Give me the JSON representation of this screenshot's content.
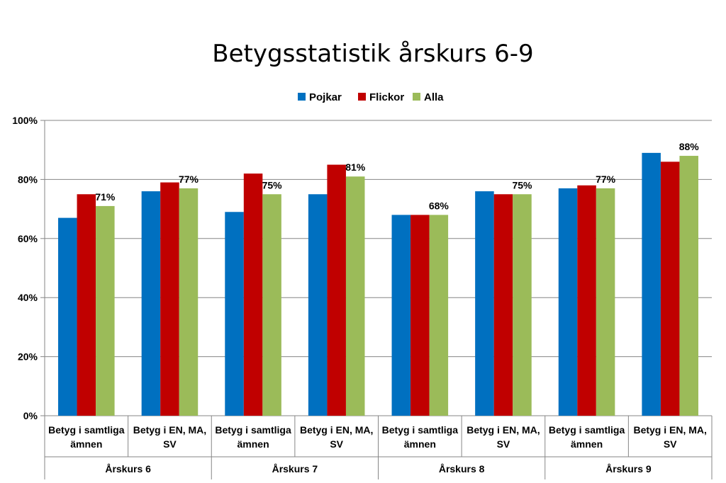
{
  "chart_data": {
    "type": "bar",
    "title": "Betygsstatistik årskurs 6-9",
    "xlabel": "",
    "ylabel": "",
    "ylim": [
      0,
      100
    ],
    "yticks": [
      0,
      20,
      40,
      60,
      80,
      100
    ],
    "ytick_labels": [
      "0%",
      "20%",
      "40%",
      "60%",
      "80%",
      "100%"
    ],
    "grid": true,
    "legend_position": "top-center",
    "groups": [
      "Årskurs 6",
      "Årskurs 7",
      "Årskurs 8",
      "Årskurs 9"
    ],
    "categories": [
      [
        "Betyg i samtliga",
        "ämnen"
      ],
      [
        "Betyg i EN, MA,",
        "SV"
      ],
      [
        "Betyg i samtliga",
        "ämnen"
      ],
      [
        "Betyg i EN, MA,",
        "SV"
      ],
      [
        "Betyg i samtliga",
        "ämnen"
      ],
      [
        "Betyg i EN, MA,",
        "SV"
      ],
      [
        "Betyg i samtliga",
        "ämnen"
      ],
      [
        "Betyg i EN, MA,",
        "SV"
      ]
    ],
    "series": [
      {
        "name": "Pojkar",
        "color": "#0070C0",
        "values": [
          67,
          76,
          69,
          75,
          68,
          76,
          77,
          89
        ]
      },
      {
        "name": "Flickor",
        "color": "#C00000",
        "values": [
          75,
          79,
          82,
          85,
          68,
          75,
          78,
          86
        ]
      },
      {
        "name": "Alla",
        "color": "#9BBB59",
        "values": [
          71,
          77,
          75,
          81,
          68,
          75,
          77,
          88
        ]
      }
    ],
    "data_labels": {
      "series": "Alla",
      "labels": [
        "71%",
        "77%",
        "75%",
        "81%",
        "68%",
        "75%",
        "77%",
        "88%"
      ]
    }
  }
}
